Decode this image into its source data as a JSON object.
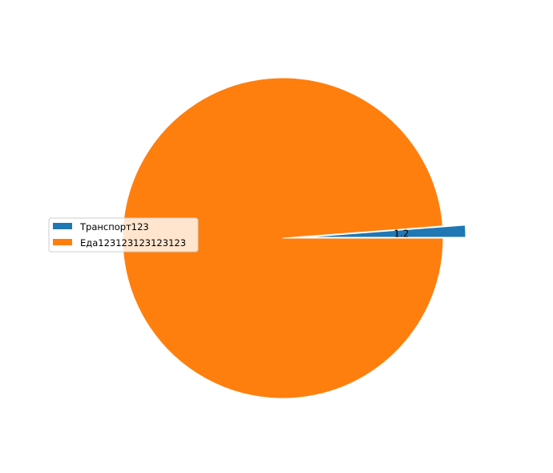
{
  "chart_data": {
    "type": "pie",
    "categories": [
      "Транспорт123",
      "Еда123123123123123"
    ],
    "values": [
      1.2,
      98.8
    ],
    "colors": [
      "#1f77b4",
      "#ff7f0e"
    ],
    "exploded": [
      true,
      false
    ],
    "data_labels": [
      "1.2",
      ""
    ],
    "legend": {
      "entries": [
        "Транспорт123",
        "Еда123123123123123"
      ],
      "placement": "center-left"
    },
    "start_angle_deg": 0,
    "direction": "counterclockwise",
    "title": ""
  }
}
